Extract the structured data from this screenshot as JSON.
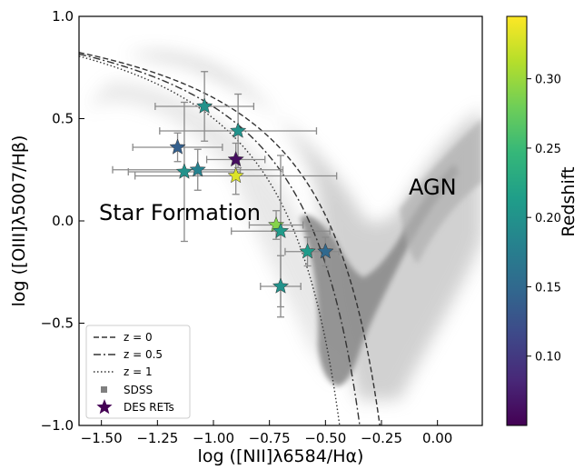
{
  "chart_data": {
    "type": "scatter",
    "xlabel": "log ([NII]λ6584/Hα)",
    "ylabel": "log ([OIII]λ5007/Hβ)",
    "xlim": [
      -1.6,
      0.2
    ],
    "ylim": [
      -1.0,
      1.0
    ],
    "xticks": [
      -1.5,
      -1.25,
      -1.0,
      -0.75,
      -0.5,
      -0.25,
      0.0
    ],
    "xtick_labels": [
      "−1.50",
      "−1.25",
      "−1.00",
      "−0.75",
      "−0.50",
      "−0.25",
      "0.00"
    ],
    "yticks": [
      -1.0,
      -0.5,
      0.0,
      0.5,
      1.0
    ],
    "ytick_labels": [
      "−1.0",
      "−0.5",
      "0.0",
      "0.5",
      "1.0"
    ],
    "annotations": [
      {
        "text": "Star Formation",
        "x": -1.44,
        "y": 0.01
      },
      {
        "text": "AGN",
        "x": -0.05,
        "y": 0.28
      }
    ],
    "legend": {
      "position": "bottom-left",
      "entries": [
        {
          "label": "z = 0",
          "style": "dashed"
        },
        {
          "label": "z = 0.5",
          "style": "dashdot"
        },
        {
          "label": "z = 1",
          "style": "dotted"
        },
        {
          "label": "SDSS",
          "style": "square",
          "color": "#808080"
        },
        {
          "label": "DES RETs",
          "style": "star",
          "color": "#440154"
        }
      ]
    },
    "colorbar": {
      "label": "Redshift",
      "range": [
        0.05,
        0.345
      ],
      "ticks": [
        0.1,
        0.15,
        0.2,
        0.25,
        0.3
      ],
      "tick_labels": [
        "0.10",
        "0.15",
        "0.20",
        "0.25",
        "0.30"
      ],
      "colormap": "viridis"
    },
    "demarcation_curves": [
      {
        "name": "z = 0",
        "z": 0,
        "style": "dashed"
      },
      {
        "name": "z = 0.5",
        "z": 0.5,
        "style": "dashdot"
      },
      {
        "name": "z = 1",
        "z": 1,
        "style": "dotted"
      }
    ],
    "series": [
      {
        "name": "DES RETs",
        "marker": "star",
        "points": [
          {
            "x": -1.04,
            "y": 0.56,
            "z": 0.2,
            "xerr": 0.22,
            "yerr": 0.17
          },
          {
            "x": -0.89,
            "y": 0.44,
            "z": 0.2,
            "xerr": 0.35,
            "yerr": 0.18
          },
          {
            "x": -1.16,
            "y": 0.36,
            "z": 0.14,
            "xerr": 0.2,
            "yerr": 0.07
          },
          {
            "x": -0.9,
            "y": 0.3,
            "z": 0.06,
            "xerr": 0.13,
            "yerr": 0.08
          },
          {
            "x": -1.13,
            "y": 0.24,
            "z": 0.2,
            "xerr": 0.25,
            "yerr": 0.34
          },
          {
            "x": -1.07,
            "y": 0.25,
            "z": 0.18,
            "xerr": 0.38,
            "yerr": 0.1
          },
          {
            "x": -0.9,
            "y": 0.22,
            "z": 0.33,
            "xerr": 0.45,
            "yerr": 0.09
          },
          {
            "x": -0.72,
            "y": -0.02,
            "z": 0.29,
            "xerr": 0.12,
            "yerr": 0.07
          },
          {
            "x": -0.7,
            "y": -0.05,
            "z": 0.21,
            "xerr": 0.22,
            "yerr": 0.37
          },
          {
            "x": -0.58,
            "y": -0.15,
            "z": 0.21,
            "xerr": 0.1,
            "yerr": 0.07
          },
          {
            "x": -0.5,
            "y": -0.15,
            "z": 0.15,
            "xerr": 0.06,
            "yerr": 0.07
          },
          {
            "x": -0.7,
            "y": -0.32,
            "z": 0.2,
            "xerr": 0.09,
            "yerr": 0.15
          }
        ]
      }
    ]
  }
}
